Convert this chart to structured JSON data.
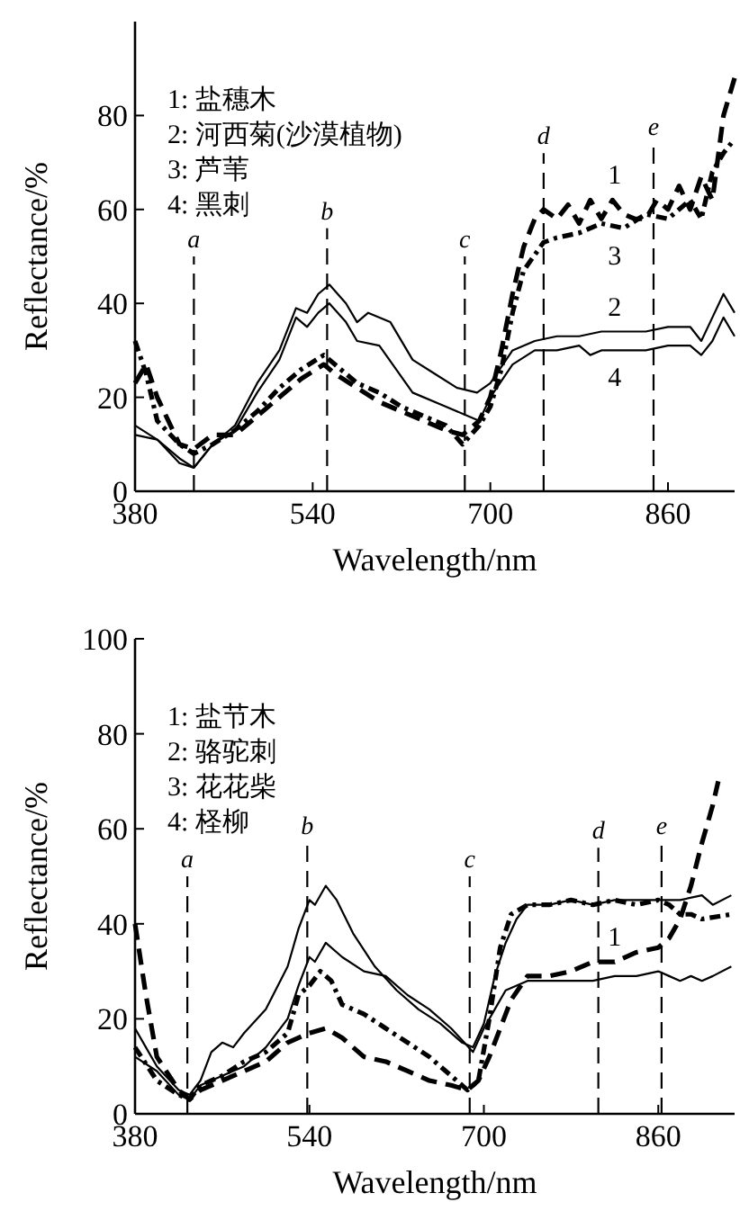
{
  "chart_data": [
    {
      "type": "line",
      "xlabel": "Wavelength/nm",
      "ylabel": "Reflectance/%",
      "xlim": [
        380,
        920
      ],
      "ylim": [
        0,
        100
      ],
      "xticks": [
        380,
        540,
        700,
        860
      ],
      "yticks": [
        0,
        20,
        40,
        60,
        80
      ],
      "grid": false,
      "annotations": [
        "1: 盐穗木",
        "2: 河西菊(沙漠植物)",
        "3: 芦苇",
        "4: 黑刺"
      ],
      "ref_lines": [
        {
          "axis": "x",
          "value": 433,
          "label": "a",
          "line_style": "dashed"
        },
        {
          "axis": "x",
          "value": 553,
          "label": "b",
          "line_style": "dashed"
        },
        {
          "axis": "x",
          "value": 677,
          "label": "c",
          "line_style": "dashed"
        },
        {
          "axis": "x",
          "value": 748,
          "label": "d",
          "line_style": "dashed"
        },
        {
          "axis": "x",
          "value": 847,
          "label": "e",
          "line_style": "dashed"
        }
      ],
      "series": [
        {
          "name": "1",
          "color": "#000000",
          "line_style": "dashed",
          "x": [
            380,
            390,
            400,
            420,
            433,
            450,
            470,
            490,
            510,
            530,
            550,
            560,
            580,
            600,
            620,
            640,
            660,
            675,
            690,
            700,
            710,
            720,
            730,
            740,
            748,
            760,
            770,
            780,
            790,
            800,
            810,
            820,
            830,
            840,
            850,
            860,
            870,
            880,
            890,
            900,
            910,
            920
          ],
          "values": [
            23,
            27,
            20,
            10,
            9,
            12,
            12,
            16,
            20,
            24,
            27,
            25,
            22,
            19,
            17,
            15,
            13,
            12,
            15,
            20,
            30,
            42,
            52,
            58,
            60,
            58,
            61,
            57,
            62,
            58,
            62,
            59,
            58,
            58,
            62,
            60,
            65,
            60,
            67,
            62,
            80,
            88
          ]
        },
        {
          "name": "2",
          "color": "#000000",
          "line_style": "solid",
          "x": [
            380,
            400,
            420,
            433,
            450,
            470,
            490,
            510,
            525,
            535,
            545,
            555,
            570,
            580,
            590,
            610,
            630,
            650,
            670,
            688,
            700,
            720,
            740,
            760,
            780,
            800,
            820,
            840,
            860,
            880,
            890,
            900,
            910,
            920
          ],
          "values": [
            14,
            11,
            7,
            5,
            10,
            14,
            23,
            30,
            39,
            38,
            42,
            44,
            40,
            36,
            38,
            36,
            28,
            25,
            22,
            21,
            23,
            30,
            32,
            33,
            33,
            34,
            34,
            34,
            35,
            35,
            32,
            37,
            42,
            38
          ]
        },
        {
          "name": "3",
          "color": "#000000",
          "line_style": "dotted",
          "x": [
            380,
            390,
            400,
            420,
            433,
            450,
            470,
            490,
            510,
            530,
            550,
            560,
            580,
            600,
            620,
            640,
            660,
            675,
            690,
            700,
            710,
            720,
            730,
            748,
            760,
            780,
            800,
            820,
            840,
            860,
            870,
            880,
            890,
            900,
            910,
            920
          ],
          "values": [
            32,
            25,
            15,
            10,
            8,
            10,
            13,
            17,
            22,
            26,
            29,
            27,
            23,
            21,
            18,
            16,
            14,
            10,
            14,
            18,
            26,
            38,
            47,
            53,
            54,
            55,
            57,
            56,
            59,
            58,
            60,
            62,
            58,
            68,
            72,
            75
          ]
        },
        {
          "name": "4",
          "color": "#000000",
          "line_style": "solid",
          "x": [
            380,
            400,
            420,
            433,
            450,
            470,
            490,
            510,
            525,
            535,
            545,
            555,
            570,
            580,
            600,
            630,
            660,
            690,
            700,
            720,
            740,
            760,
            780,
            790,
            800,
            820,
            840,
            860,
            880,
            890,
            900,
            910,
            920
          ],
          "values": [
            12,
            11,
            6,
            5,
            10,
            13,
            21,
            28,
            37,
            35,
            38,
            40,
            36,
            32,
            31,
            21,
            18,
            15,
            20,
            27,
            30,
            30,
            31,
            29,
            30,
            30,
            30,
            31,
            31,
            29,
            32,
            37,
            33
          ]
        }
      ]
    },
    {
      "type": "line",
      "xlabel": "Wavelength/nm",
      "ylabel": "Reflectance/%",
      "xlim": [
        380,
        930
      ],
      "ylim": [
        0,
        100
      ],
      "xticks": [
        380,
        540,
        700,
        860
      ],
      "yticks": [
        0,
        20,
        40,
        60,
        80,
        100
      ],
      "grid": false,
      "annotations": [
        "1: 盐节木",
        "2: 骆驼刺",
        "3: 花花柴",
        "4: 柽柳"
      ],
      "ref_lines": [
        {
          "axis": "x",
          "value": 428,
          "label": "a",
          "line_style": "dashed"
        },
        {
          "axis": "x",
          "value": 538,
          "label": "b",
          "line_style": "dashed"
        },
        {
          "axis": "x",
          "value": 687,
          "label": "c",
          "line_style": "dashed"
        },
        {
          "axis": "x",
          "value": 805,
          "label": "d",
          "line_style": "dashed"
        },
        {
          "axis": "x",
          "value": 863,
          "label": "e",
          "line_style": "dashed"
        }
      ],
      "series": [
        {
          "name": "1",
          "color": "#000000",
          "line_style": "dashed",
          "x": [
            380,
            390,
            400,
            420,
            430,
            440,
            460,
            480,
            500,
            520,
            540,
            555,
            570,
            590,
            610,
            630,
            650,
            670,
            685,
            695,
            705,
            715,
            725,
            740,
            760,
            780,
            800,
            820,
            840,
            860,
            870,
            880,
            890,
            900,
            910,
            915
          ],
          "values": [
            40,
            25,
            12,
            5,
            3,
            5,
            7,
            9,
            11,
            15,
            17,
            18,
            16,
            12,
            11,
            9,
            7,
            6,
            5,
            7,
            12,
            18,
            24,
            29,
            29,
            30,
            32,
            32,
            34,
            35,
            37,
            41,
            48,
            57,
            65,
            70
          ]
        },
        {
          "color": "#000000",
          "line_style": "solid",
          "x": [
            380,
            390,
            400,
            420,
            430,
            440,
            450,
            460,
            470,
            480,
            500,
            520,
            530,
            540,
            545,
            555,
            565,
            580,
            600,
            620,
            640,
            660,
            680,
            690,
            700,
            710,
            720,
            730,
            740,
            760,
            780,
            800,
            820,
            840,
            860,
            880,
            900,
            910,
            927
          ],
          "values": [
            18,
            14,
            10,
            5,
            4,
            7,
            13,
            15,
            14,
            17,
            22,
            31,
            39,
            45,
            44,
            48,
            45,
            38,
            31,
            26,
            22,
            19,
            15,
            14,
            19,
            29,
            36,
            41,
            44,
            44,
            45,
            44,
            45,
            45,
            45,
            45,
            46,
            44,
            46
          ]
        },
        {
          "color": "#000000",
          "line_style": "solid",
          "x": [
            380,
            400,
            420,
            430,
            440,
            460,
            480,
            500,
            520,
            530,
            540,
            545,
            555,
            570,
            590,
            610,
            630,
            650,
            670,
            690,
            700,
            710,
            720,
            740,
            760,
            780,
            800,
            820,
            840,
            860,
            870,
            880,
            890,
            900,
            910,
            927
          ],
          "values": [
            12,
            9,
            4,
            3,
            6,
            8,
            10,
            14,
            20,
            27,
            33,
            32,
            36,
            33,
            30,
            29,
            25,
            22,
            18,
            13,
            18,
            22,
            26,
            28,
            28,
            28,
            28,
            29,
            29,
            30,
            29,
            28,
            29,
            28,
            29,
            31
          ]
        },
        {
          "color": "#000000",
          "line_style": "dotted",
          "x": [
            380,
            400,
            420,
            430,
            440,
            460,
            480,
            500,
            520,
            530,
            540,
            550,
            560,
            570,
            590,
            610,
            630,
            650,
            670,
            685,
            695,
            705,
            715,
            725,
            740,
            760,
            780,
            800,
            820,
            840,
            860,
            870,
            880,
            890,
            900,
            927
          ],
          "values": [
            14,
            7,
            4,
            3,
            6,
            8,
            11,
            13,
            17,
            25,
            27,
            30,
            28,
            23,
            21,
            18,
            15,
            12,
            8,
            5,
            7,
            20,
            35,
            42,
            44,
            44,
            45,
            44,
            45,
            44,
            45,
            44,
            42,
            42,
            41,
            42
          ]
        }
      ]
    }
  ]
}
